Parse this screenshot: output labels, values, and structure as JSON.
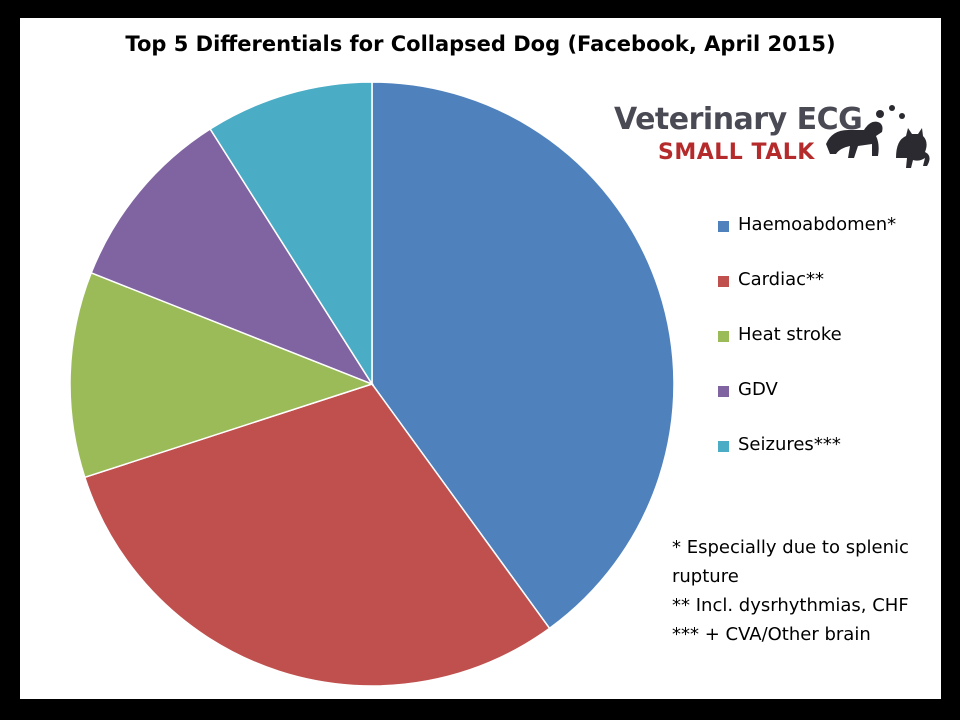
{
  "chart_data": {
    "type": "pie",
    "title": "Top 5 Differentials for Collapsed Dog (Facebook, April 2015)",
    "categories": [
      "Haemoabdomen*",
      "Cardiac**",
      "Heat stroke",
      "GDV",
      "Seizures***"
    ],
    "values": [
      40,
      30,
      11,
      10,
      9
    ],
    "colors": [
      "#4f81bd",
      "#c0504d",
      "#9bbb59",
      "#8064a2",
      "#4bacc6"
    ],
    "start_angle": "12 o'clock",
    "direction": "clockwise",
    "legend_position": "right"
  },
  "logo": {
    "line1": "Veterinary ECG",
    "line2": "SMALL TALK",
    "icon": "dog-and-cat-silhouette-icon"
  },
  "notes": [
    "* Especially due to splenic",
    "rupture",
    "** Incl. dysrhythmias, CHF",
    "*** + CVA/Other brain"
  ]
}
